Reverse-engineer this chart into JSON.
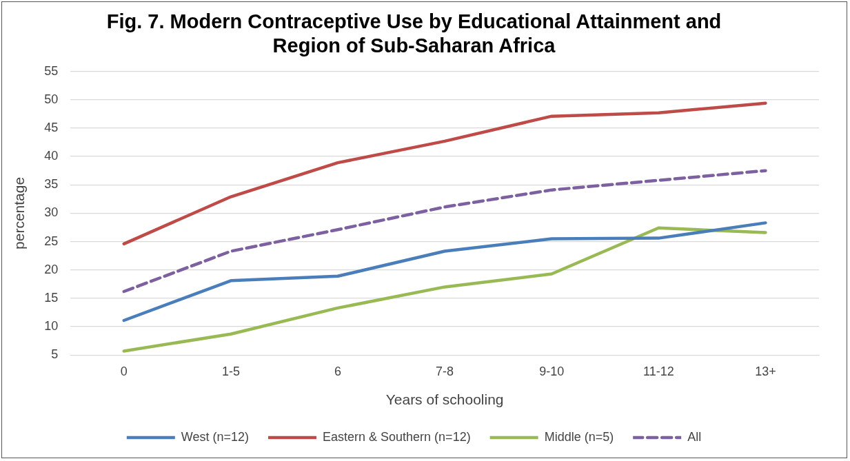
{
  "chart_data": {
    "type": "line",
    "title": "Fig. 7. Modern Contraceptive Use by Educational Attainment and Region of Sub-Saharan Africa",
    "xlabel": "Years of schooling",
    "ylabel": "percentage",
    "categories": [
      "0",
      "1-5",
      "6",
      "7-8",
      "9-10",
      "11-12",
      "13+"
    ],
    "series": [
      {
        "name": "West (n=12)",
        "color": "#4a7ebb",
        "values": [
          11.1,
          18.1,
          18.9,
          23.3,
          25.5,
          25.6,
          28.3
        ]
      },
      {
        "name": "Eastern & Southern (n=12)",
        "color": "#be4b48",
        "values": [
          24.6,
          32.9,
          38.9,
          42.7,
          47.1,
          47.7,
          49.4
        ]
      },
      {
        "name": "Middle (n=5)",
        "color": "#98b954",
        "values": [
          5.7,
          8.7,
          13.3,
          17.0,
          19.3,
          27.4,
          26.6
        ]
      },
      {
        "name": "All",
        "color": "#7d60a0",
        "line_style": "dashed",
        "values": [
          16.2,
          23.3,
          27.1,
          31.1,
          34.1,
          35.8,
          37.5
        ]
      }
    ],
    "ylim": [
      5,
      55
    ],
    "yticks": [
      5,
      10,
      15,
      20,
      25,
      30,
      35,
      40,
      45,
      50,
      55
    ],
    "grid": "y",
    "legend": "bottom",
    "marker": "none",
    "line_style": "solid"
  }
}
